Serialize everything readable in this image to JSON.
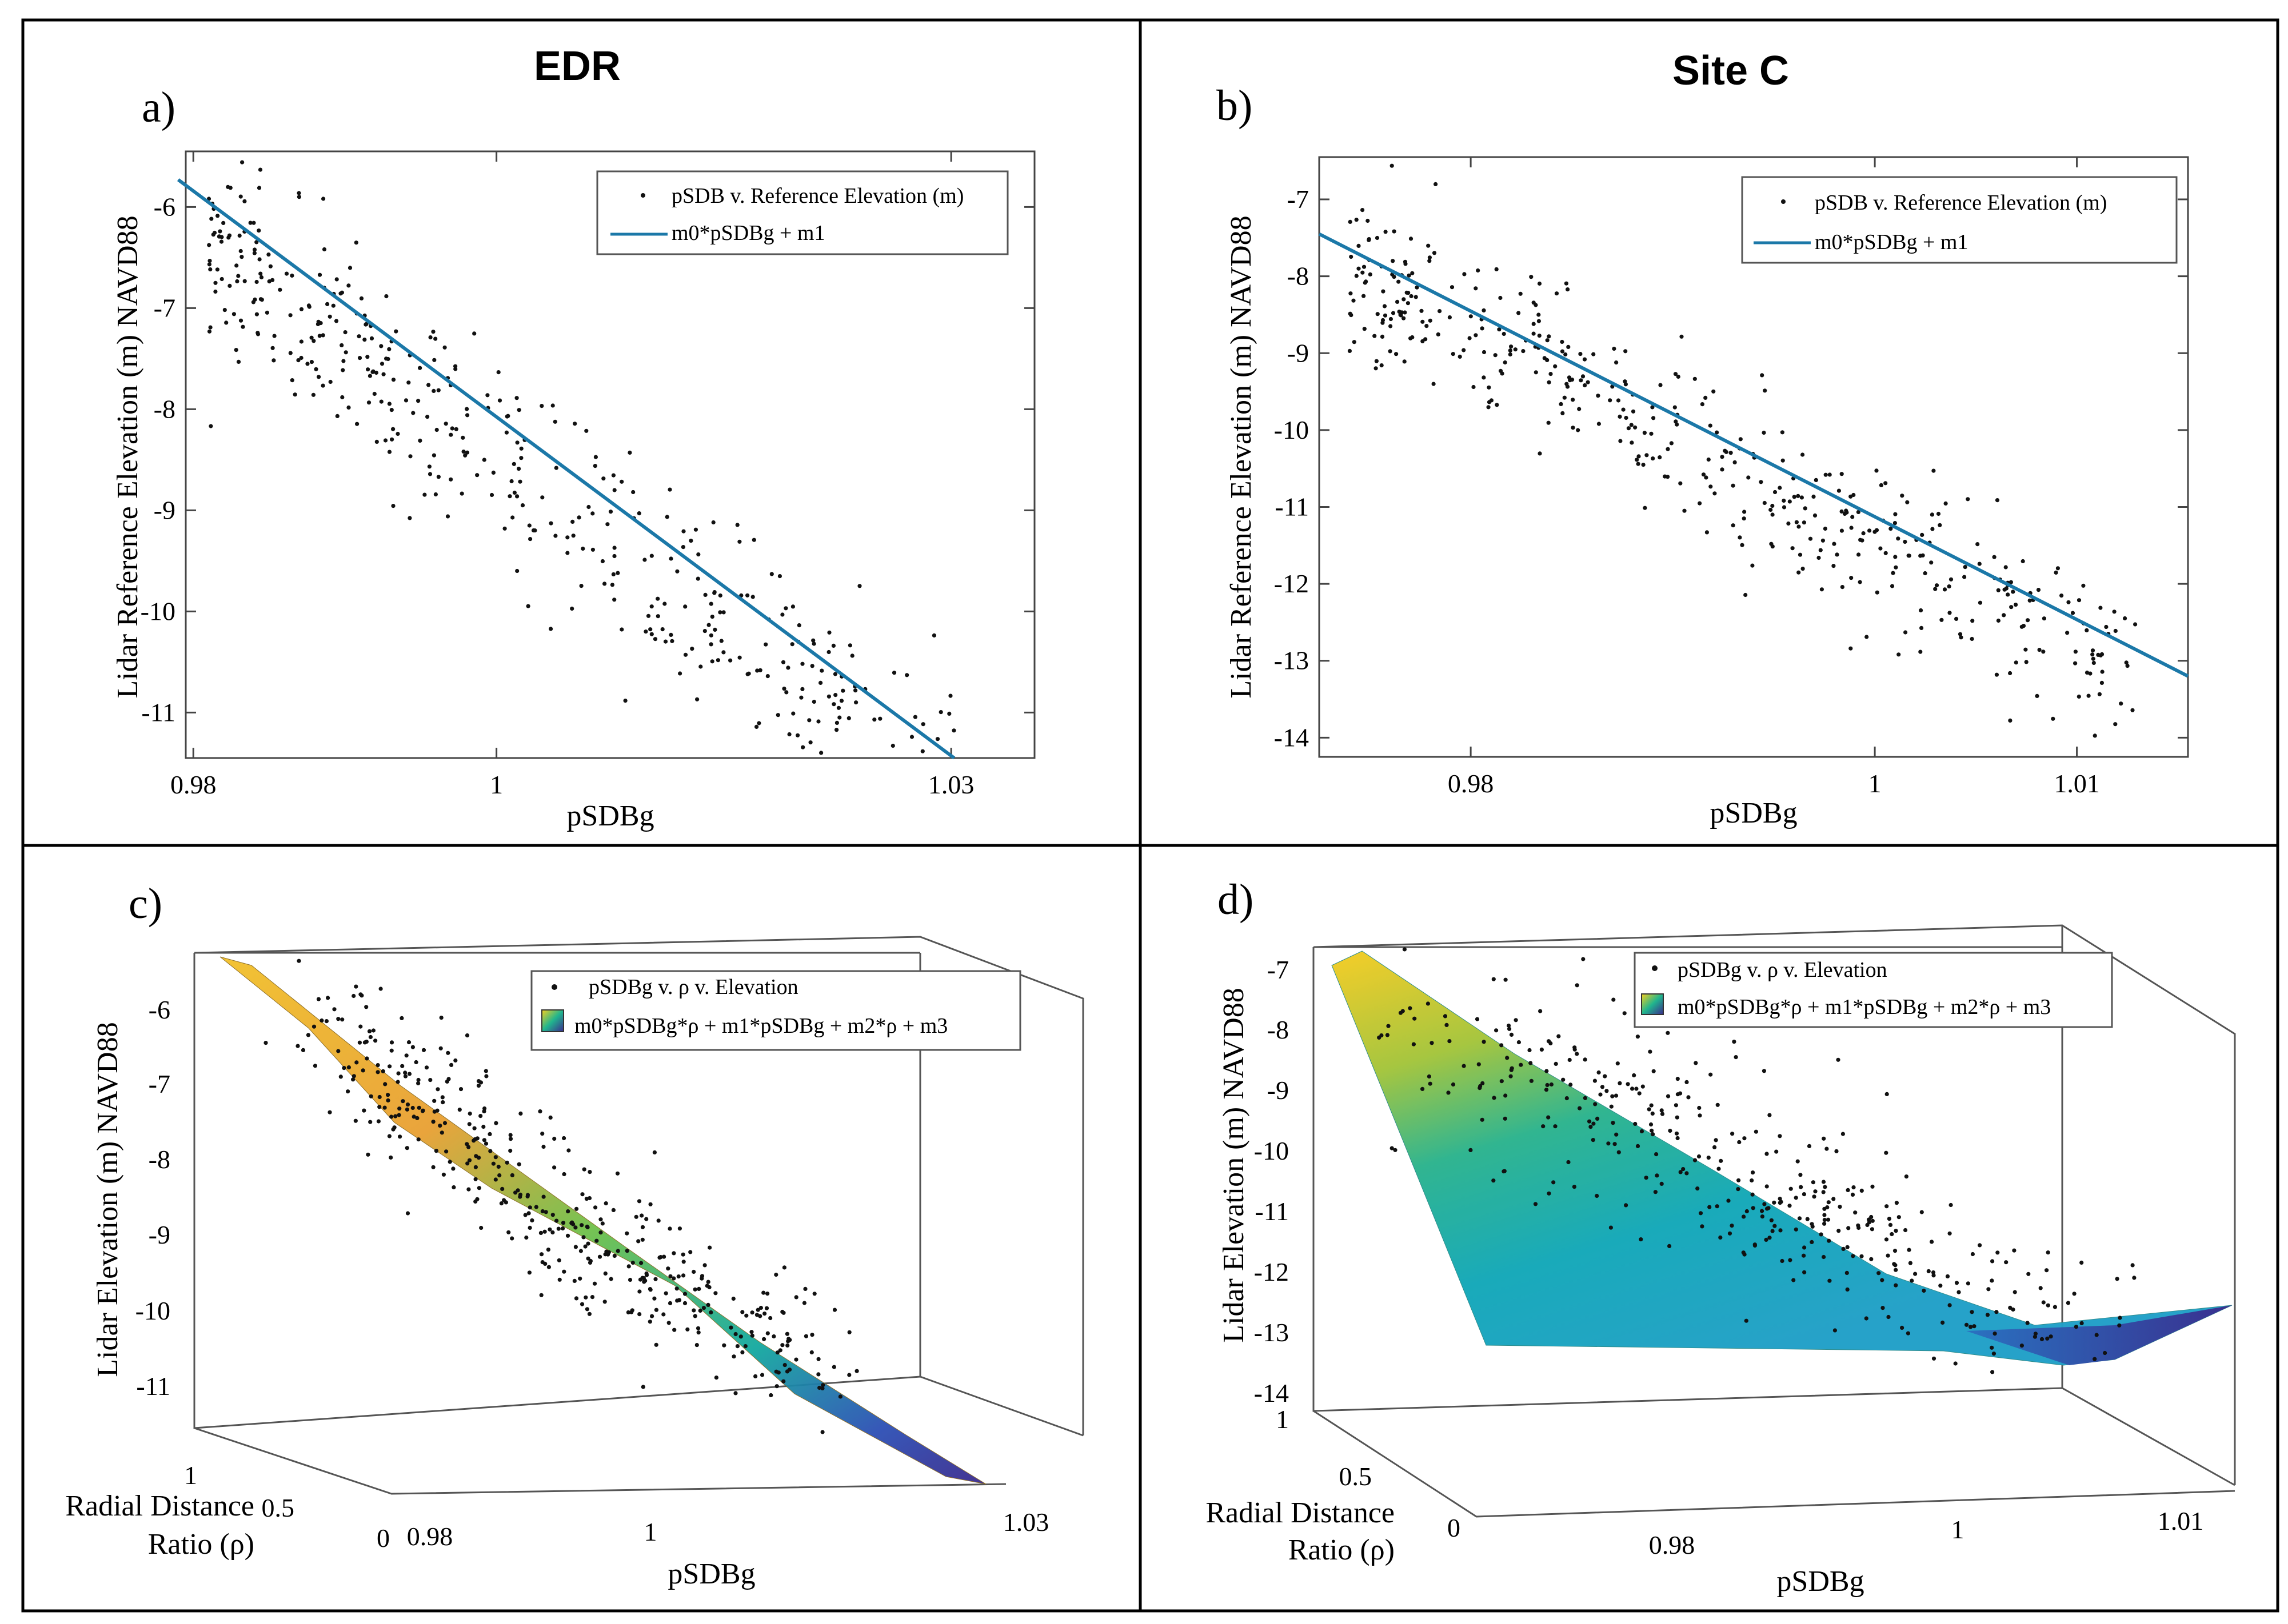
{
  "colors": {
    "fit_line": "#1b78a8",
    "points": "#111111",
    "surface_low": "#3b2b8f",
    "surface_mid": "#20b58e",
    "surface_high": "#f5d020",
    "frame": "#000000"
  },
  "chart_data": [
    {
      "id": "a",
      "panel_label": "a)",
      "type": "scatter",
      "title": "EDR",
      "xlabel": "pSDBg",
      "ylabel": "Lidar Reference Elevation (m) NAVD88",
      "xlim": [
        0.9795,
        1.0355
      ],
      "ylim": [
        -11.45,
        -5.45
      ],
      "xticks": [
        0.98,
        1,
        1.03
      ],
      "xtick_labels": [
        "0.98",
        "1",
        "1.03"
      ],
      "yticks": [
        -11,
        -10,
        -9,
        -8,
        -7,
        -6
      ],
      "ytick_labels": [
        "-11",
        "-10",
        "-9",
        "-8",
        "-7",
        "-6"
      ],
      "legend": [
        "pSDB v. Reference Elevation (m)",
        "m0*pSDBg + m1"
      ],
      "fit": {
        "x": [
          0.979,
          1.0302
        ],
        "y": [
          -5.73,
          -11.45
        ]
      },
      "scatter": {
        "x_center": 1.0,
        "x_spread": 0.02,
        "slope": -110,
        "intercept": -8.5,
        "noise": 0.5,
        "n": 480,
        "x_range": [
          0.981,
          1.034
        ]
      }
    },
    {
      "id": "b",
      "panel_label": "b)",
      "type": "scatter",
      "title": "Site C",
      "xlabel": "pSDBg",
      "ylabel": "Lidar Reference Elevation (m) NAVD88",
      "xlim": [
        0.9725,
        1.0155
      ],
      "ylim": [
        -14.25,
        -6.45
      ],
      "xticks": [
        0.98,
        1,
        1.01
      ],
      "xtick_labels": [
        "0.98",
        "1",
        "1.01"
      ],
      "yticks": [
        -14,
        -13,
        -12,
        -11,
        -10,
        -9,
        -8,
        -7
      ],
      "ytick_labels": [
        "-14",
        "-13",
        "-12",
        "-11",
        "-10",
        "-9",
        "-8",
        "-7"
      ],
      "legend": [
        "pSDB v. Reference Elevation (m)",
        "m0*pSDBg + m1"
      ],
      "fit": {
        "x": [
          0.9725,
          1.0155
        ],
        "y": [
          -7.45,
          -13.2
        ]
      },
      "scatter": {
        "x_center": 0.99,
        "x_spread": 0.02,
        "slope": -133,
        "intercept": -10.1,
        "noise": 0.55,
        "n": 450,
        "x_range": [
          0.974,
          1.013
        ]
      }
    },
    {
      "id": "c",
      "panel_label": "c)",
      "type": "surface3d",
      "xlabel": "pSDBg",
      "ylabel_lines": [
        "Radial Distance",
        "Ratio (ρ)"
      ],
      "zlabel": "Lidar Elevation (m) NAVD88",
      "xtick_labels": [
        "0.98",
        "1",
        "1.03"
      ],
      "ytick_labels": [
        "0",
        "0.5",
        "1"
      ],
      "ztick_labels": [
        "-6",
        "-7",
        "-8",
        "-9",
        "-10",
        "-11"
      ],
      "legend": [
        "pSDBg v. ρ v. Elevation",
        "m0*pSDBg*ρ + m1*pSDBg + m2*ρ + m3"
      ]
    },
    {
      "id": "d",
      "panel_label": "d)",
      "type": "surface3d",
      "xlabel": "pSDBg",
      "ylabel_lines": [
        "Radial Distance",
        "Ratio (ρ)"
      ],
      "zlabel": "Lidar Elevation (m) NAVD88",
      "xtick_labels": [
        "0.98",
        "1",
        "1.01"
      ],
      "ytick_labels": [
        "0",
        "0.5",
        "1"
      ],
      "ztick_labels": [
        "-7",
        "-8",
        "-9",
        "-10",
        "-11",
        "-12",
        "-13",
        "-14"
      ],
      "legend": [
        "pSDBg v. ρ v. Elevation",
        "m0*pSDBg*ρ + m1*pSDBg + m2*ρ + m3"
      ]
    }
  ]
}
